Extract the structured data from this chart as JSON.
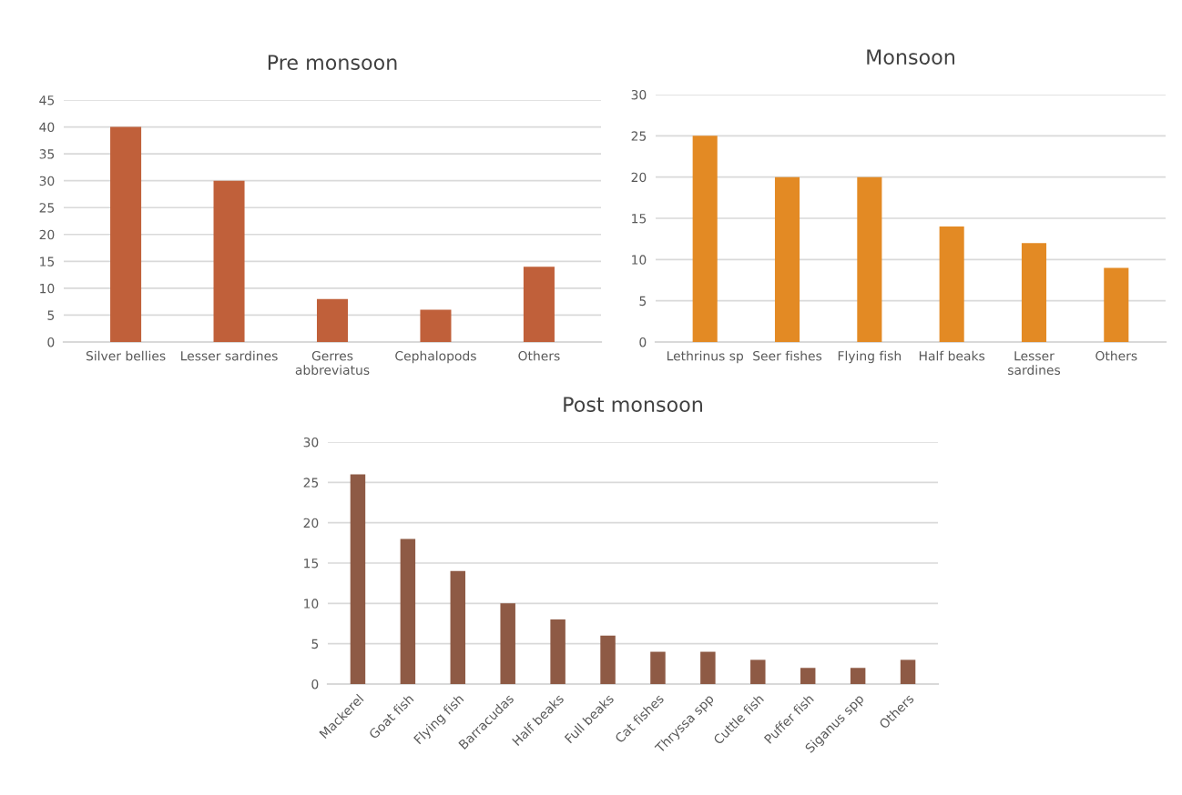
{
  "chart_data": [
    {
      "type": "bar",
      "title": "Pre monsoon",
      "categories": [
        "Silver bellies",
        "Lesser sardines",
        "Gerres\nabbreviatus",
        "Cephalopods",
        "Others"
      ],
      "values": [
        40,
        30,
        8,
        6,
        14
      ],
      "color": "#c0603a",
      "ylim": [
        0,
        45
      ],
      "yticks": [
        0,
        5,
        10,
        15,
        20,
        25,
        30,
        35,
        40,
        45
      ],
      "grid": "y",
      "legend": false
    },
    {
      "type": "bar",
      "title": "Monsoon",
      "categories": [
        "Lethrinus sp",
        "Seer fishes",
        "Flying fish",
        "Half beaks",
        "Lesser\nsardines",
        "Others"
      ],
      "values": [
        25,
        20,
        20,
        14,
        12,
        9
      ],
      "color": "#e38a24",
      "ylim": [
        0,
        30
      ],
      "yticks": [
        0,
        5,
        10,
        15,
        20,
        25,
        30
      ],
      "grid": "y",
      "legend": false
    },
    {
      "type": "bar",
      "title": "Post monsoon",
      "categories": [
        "Mackerel",
        "Goat fish",
        "Flying fish",
        "Barracudas",
        "Half beaks",
        "Full beaks",
        "Cat fishes",
        "Thryssa spp",
        "Cuttle fish",
        "Puffer fish",
        "Siganus spp",
        "Others"
      ],
      "values": [
        26,
        18,
        14,
        10,
        8,
        6,
        4,
        4,
        3,
        2,
        2,
        3
      ],
      "color": "#8e5a45",
      "ylim": [
        0,
        30
      ],
      "yticks": [
        0,
        5,
        10,
        15,
        20,
        25,
        30
      ],
      "grid": "y",
      "legend": false
    }
  ]
}
